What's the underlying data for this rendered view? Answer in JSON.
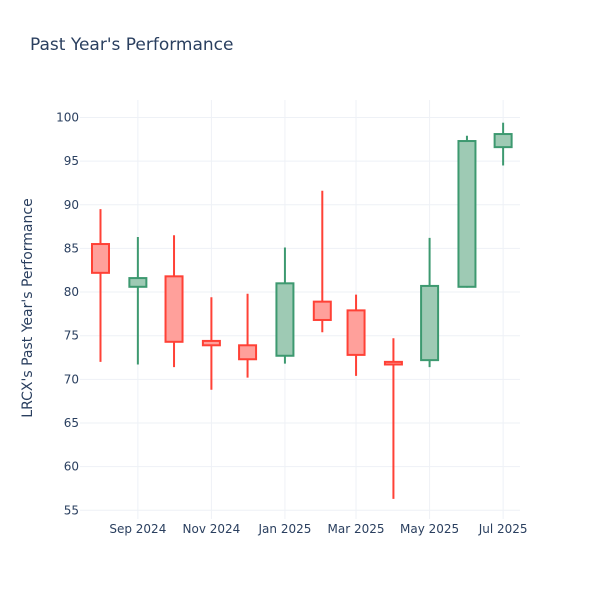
{
  "chart_data": {
    "type": "candlestick",
    "title": "Past Year's Performance",
    "ylabel": "LRCX's Past Year's Performance",
    "xlabel": "",
    "ylim": [
      54,
      102
    ],
    "xlim": [
      "2024-07-15",
      "2025-07-15"
    ],
    "yticks": [
      55,
      60,
      65,
      70,
      75,
      80,
      85,
      90,
      95,
      100
    ],
    "xticks": [
      {
        "date": "2024-09-01",
        "label": "Sep 2024"
      },
      {
        "date": "2024-11-01",
        "label": "Nov 2024"
      },
      {
        "date": "2025-01-01",
        "label": "Jan 2025"
      },
      {
        "date": "2025-03-01",
        "label": "Mar 2025"
      },
      {
        "date": "2025-05-01",
        "label": "May 2025"
      },
      {
        "date": "2025-07-01",
        "label": "Jul 2025"
      }
    ],
    "grid": true,
    "colors": {
      "increasing_line": "#3d9970",
      "increasing_fill": "#9ecab4",
      "decreasing_line": "#ff4136",
      "decreasing_fill": "#ffa09b",
      "grid": "#eef1f6",
      "text": "#2a3f5f"
    },
    "candles": [
      {
        "date": "2024-08-01",
        "open": 85.5,
        "high": 89.5,
        "low": 72.0,
        "close": 82.2
      },
      {
        "date": "2024-09-01",
        "open": 80.6,
        "high": 86.3,
        "low": 71.7,
        "close": 81.6
      },
      {
        "date": "2024-10-01",
        "open": 81.8,
        "high": 86.5,
        "low": 71.4,
        "close": 74.3
      },
      {
        "date": "2024-11-01",
        "open": 74.4,
        "high": 79.4,
        "low": 68.8,
        "close": 73.9
      },
      {
        "date": "2024-12-01",
        "open": 73.9,
        "high": 79.8,
        "low": 70.2,
        "close": 72.3
      },
      {
        "date": "2025-01-01",
        "open": 72.7,
        "high": 85.1,
        "low": 71.8,
        "close": 81.0
      },
      {
        "date": "2025-02-01",
        "open": 78.9,
        "high": 91.6,
        "low": 75.4,
        "close": 76.8
      },
      {
        "date": "2025-03-01",
        "open": 77.9,
        "high": 79.7,
        "low": 70.4,
        "close": 72.8
      },
      {
        "date": "2025-04-01",
        "open": 72.0,
        "high": 74.7,
        "low": 56.3,
        "close": 71.7
      },
      {
        "date": "2025-05-01",
        "open": 72.2,
        "high": 86.2,
        "low": 71.4,
        "close": 80.7
      },
      {
        "date": "2025-06-01",
        "open": 80.6,
        "high": 97.9,
        "low": 80.5,
        "close": 97.3
      },
      {
        "date": "2025-07-01",
        "open": 96.6,
        "high": 99.4,
        "low": 94.5,
        "close": 98.1
      }
    ]
  }
}
